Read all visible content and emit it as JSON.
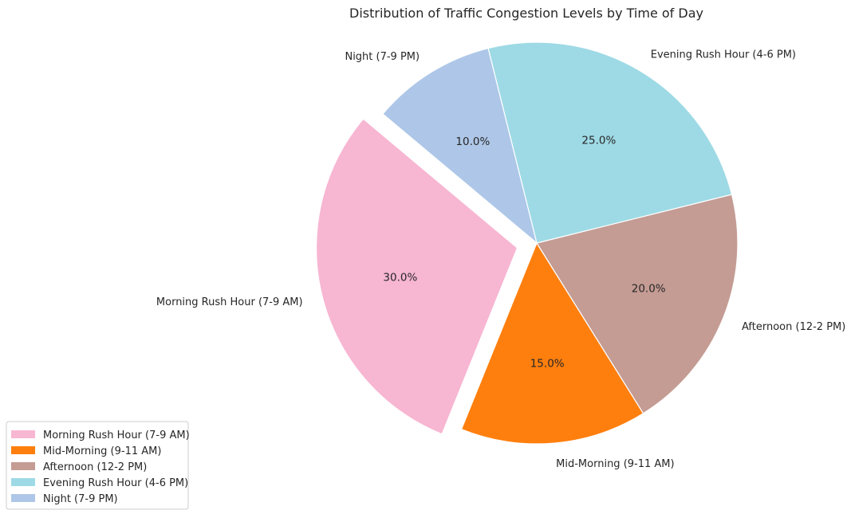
{
  "chart_data": {
    "type": "pie",
    "title": "Distribution of Traffic Congestion Levels by Time of Day",
    "categories": [
      "Morning Rush Hour (7-9 AM)",
      "Mid-Morning (9-11 AM)",
      "Afternoon (12-2 PM)",
      "Evening Rush Hour (4-6 PM)",
      "Night (7-9 PM)"
    ],
    "values": [
      30,
      15,
      20,
      25,
      10
    ],
    "value_labels": [
      "30.0%",
      "15.0%",
      "20.0%",
      "25.0%",
      "10.0%"
    ],
    "colors": [
      "#f7b6d2",
      "#ff7f0e",
      "#c49c94",
      "#9edae5",
      "#aec7e8"
    ],
    "explode": [
      0.1,
      0,
      0,
      0,
      0
    ],
    "start_angle_deg": 140,
    "direction": "counterclockwise",
    "legend": {
      "placement": "lower-left",
      "entries": [
        "Morning Rush Hour (7-9 AM)",
        "Mid-Morning (9-11 AM)",
        "Afternoon (12-2 PM)",
        "Evening Rush Hour (4-6 PM)",
        "Night (7-9 PM)"
      ]
    }
  }
}
